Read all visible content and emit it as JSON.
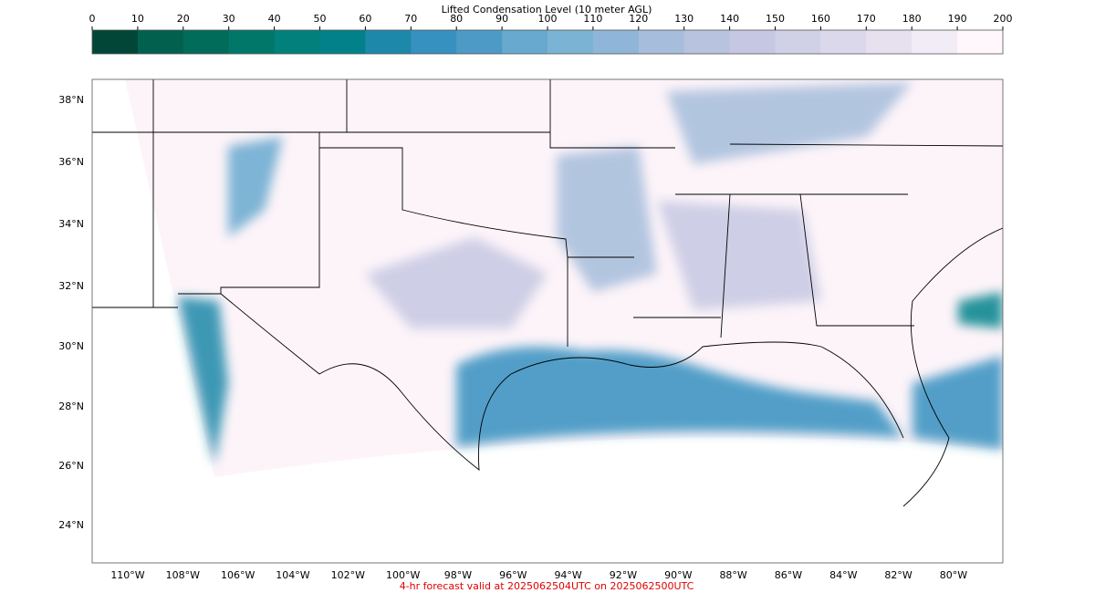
{
  "colorbar": {
    "title": "Lifted Condensation Level (10 meter AGL)",
    "ticks": [
      0,
      10,
      20,
      30,
      40,
      50,
      60,
      70,
      80,
      90,
      100,
      110,
      120,
      130,
      140,
      150,
      160,
      170,
      180,
      190,
      200
    ],
    "colors": [
      "#014636",
      "#02604f",
      "#016c59",
      "#01776a",
      "#02807b",
      "#02818a",
      "#1d88a9",
      "#3690c0",
      "#4d9ac6",
      "#67a9cf",
      "#7bb3d4",
      "#8fb5d8",
      "#a6bddb",
      "#b8c3e0",
      "#c6c8e3",
      "#d0d1e6",
      "#dcd8ec",
      "#e7e1ef",
      "#f1ecf5",
      "#fff7fb"
    ]
  },
  "map": {
    "lat_labels": [
      "38°N",
      "36°N",
      "34°N",
      "32°N",
      "30°N",
      "28°N",
      "26°N",
      "24°N"
    ],
    "lon_labels": [
      "110°W",
      "108°W",
      "106°W",
      "104°W",
      "102°W",
      "100°W",
      "98°W",
      "96°W",
      "94°W",
      "92°W",
      "90°W",
      "88°W",
      "86°W",
      "84°W",
      "82°W",
      "80°W"
    ]
  },
  "footer": "4-hr forecast valid at 2025062504UTC on 2025062500UTC"
}
